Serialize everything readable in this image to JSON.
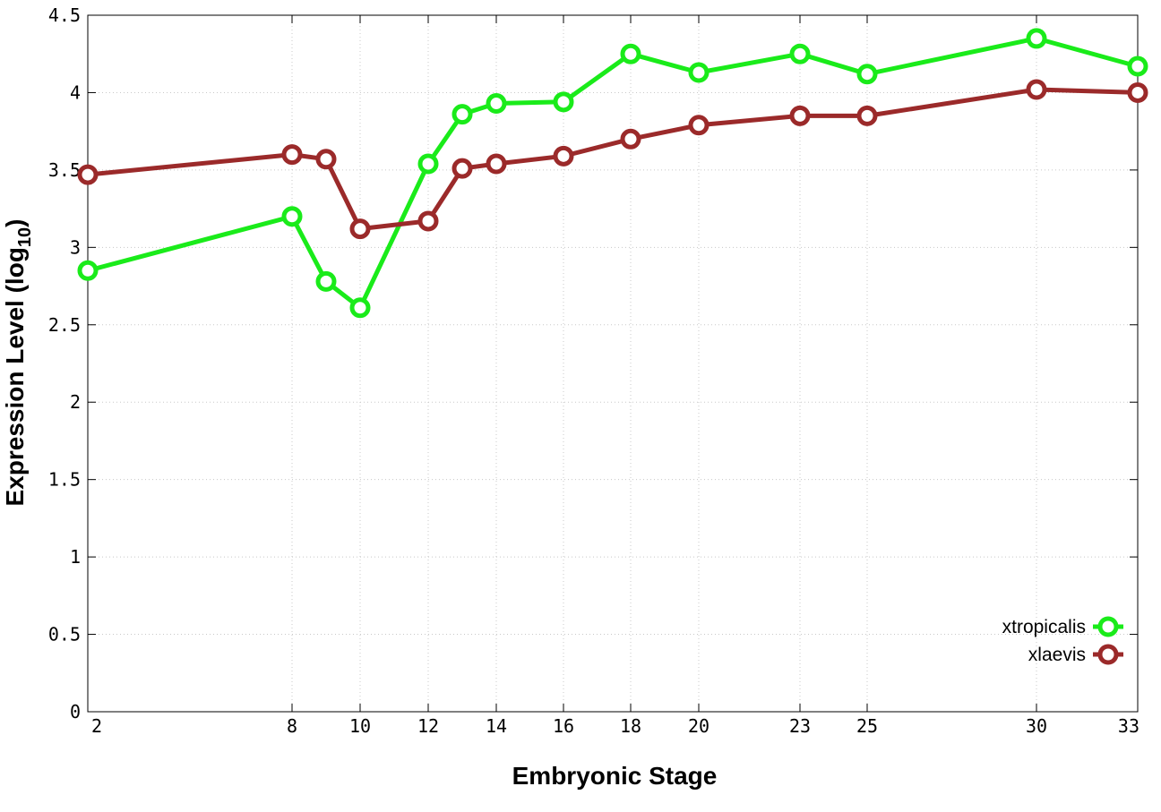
{
  "chart_data": {
    "type": "line",
    "xlabel": "Embryonic Stage",
    "ylabel_main": "Expression Level (log",
    "ylabel_sub": "10",
    "ylabel_close": ")",
    "x_tick_labels": [
      "2",
      "8",
      "10",
      "12",
      "14",
      "16",
      "18",
      "20",
      "23",
      "25",
      "30",
      "33"
    ],
    "y_tick_labels": [
      "0",
      "0.5",
      "1",
      "1.5",
      "2",
      "2.5",
      "3",
      "3.5",
      "4",
      "4.5"
    ],
    "ylim": [
      0,
      4.5
    ],
    "x_positions": [
      2,
      8,
      9,
      10,
      12,
      13,
      14,
      16,
      18,
      20,
      23,
      25,
      30,
      33
    ],
    "grid": true,
    "legend_position": "bottom-right",
    "series": [
      {
        "name": "xtropicalis",
        "color": "#1aeb1a",
        "values": [
          2.85,
          3.2,
          2.78,
          2.61,
          3.54,
          3.86,
          3.93,
          3.94,
          4.25,
          4.13,
          4.25,
          4.12,
          4.35,
          4.17
        ]
      },
      {
        "name": "xlaevis",
        "color": "#9b2a2a",
        "values": [
          3.47,
          3.6,
          3.57,
          3.12,
          3.17,
          3.51,
          3.54,
          3.59,
          3.7,
          3.79,
          3.85,
          3.85,
          4.02,
          4.0
        ]
      }
    ]
  }
}
